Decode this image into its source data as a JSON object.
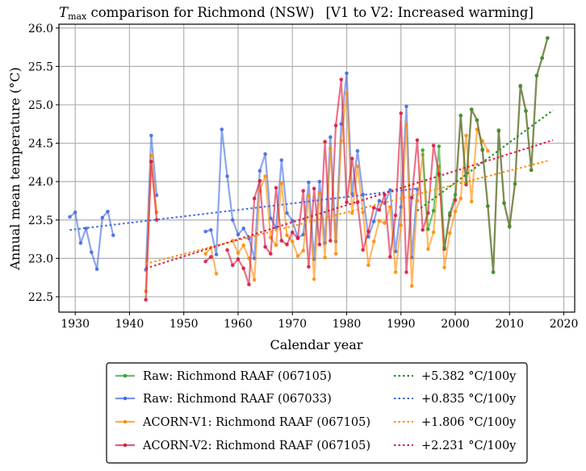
{
  "chart_data": {
    "type": "line",
    "title": {
      "prefix_italic": "T",
      "prefix_subscript": "max",
      "main": " comparison for Richmond (NSW)",
      "bracket": "[V1 to V2: Increased warming]"
    },
    "xlabel": "Calendar year",
    "ylabel": "Annual mean temperature (°C)",
    "xlim": [
      1927,
      2022
    ],
    "ylim": [
      22.3,
      26.05
    ],
    "xticks": [
      1930,
      1940,
      1950,
      1960,
      1970,
      1980,
      1990,
      2000,
      2010,
      2020
    ],
    "yticks": [
      22.5,
      23.0,
      23.5,
      24.0,
      24.5,
      25.0,
      25.5,
      26.0
    ],
    "ytick_labels": [
      "22.5",
      "23.0",
      "23.5",
      "24.0",
      "24.5",
      "25.0",
      "25.5",
      "26.0"
    ],
    "grid": true,
    "legend_position": "below-center",
    "series": [
      {
        "name": "Raw: Richmond RAAF (067033)",
        "color": "#4169e1",
        "points": [
          [
            1929,
            23.54
          ],
          [
            1930,
            23.6
          ],
          [
            1931,
            23.2
          ],
          [
            1932,
            23.39
          ],
          [
            1933,
            23.08
          ],
          [
            1934,
            22.86
          ],
          [
            1935,
            23.53
          ],
          [
            1936,
            23.61
          ],
          [
            1937,
            23.3
          ],
          null,
          [
            1943,
            22.85
          ],
          [
            1944,
            24.6
          ],
          [
            1945,
            23.82
          ],
          null,
          [
            1954,
            23.35
          ],
          [
            1955,
            23.37
          ],
          [
            1956,
            23.05
          ],
          [
            1957,
            24.68
          ],
          [
            1958,
            24.07
          ],
          [
            1959,
            23.5
          ],
          [
            1960,
            23.31
          ],
          [
            1961,
            23.39
          ],
          [
            1962,
            23.26
          ],
          [
            1963,
            23.0
          ],
          [
            1964,
            24.14
          ],
          [
            1965,
            24.36
          ],
          [
            1966,
            23.52
          ],
          [
            1967,
            23.4
          ],
          [
            1968,
            24.28
          ],
          [
            1969,
            23.59
          ],
          [
            1970,
            23.49
          ],
          [
            1971,
            23.27
          ],
          [
            1972,
            23.31
          ],
          [
            1973,
            23.99
          ],
          [
            1974,
            22.99
          ],
          [
            1975,
            24.0
          ],
          [
            1976,
            23.2
          ],
          [
            1977,
            24.58
          ],
          [
            1978,
            23.22
          ],
          [
            1979,
            24.75
          ],
          [
            1980,
            25.41
          ],
          [
            1981,
            23.84
          ],
          [
            1982,
            24.4
          ],
          [
            1983,
            23.83
          ],
          [
            1984,
            23.28
          ],
          [
            1985,
            23.48
          ],
          [
            1986,
            23.75
          ],
          [
            1987,
            23.72
          ],
          [
            1988,
            23.89
          ],
          [
            1989,
            23.09
          ],
          [
            1990,
            23.67
          ],
          [
            1991,
            24.98
          ],
          [
            1992,
            23.01
          ],
          [
            1993,
            23.9
          ]
        ]
      },
      {
        "name": "ACORN-V1: Richmond RAAF (067105)",
        "color": "#ff8c00",
        "points": [
          [
            1943,
            22.57
          ],
          [
            1944,
            24.34
          ],
          [
            1945,
            23.6
          ],
          null,
          [
            1954,
            23.06
          ],
          [
            1955,
            23.14
          ],
          [
            1956,
            22.8
          ],
          null,
          [
            1959,
            23.23
          ],
          [
            1960,
            23.07
          ],
          [
            1961,
            23.17
          ],
          [
            1962,
            23.0
          ],
          [
            1963,
            22.72
          ],
          [
            1964,
            23.88
          ],
          [
            1965,
            24.07
          ],
          [
            1966,
            23.27
          ],
          [
            1967,
            23.17
          ],
          [
            1968,
            23.98
          ],
          [
            1969,
            23.3
          ],
          [
            1970,
            23.22
          ],
          [
            1971,
            23.03
          ],
          [
            1972,
            23.1
          ],
          [
            1973,
            23.82
          ],
          [
            1974,
            22.73
          ],
          [
            1975,
            23.85
          ],
          [
            1976,
            23.01
          ],
          [
            1977,
            24.43
          ],
          [
            1978,
            23.06
          ],
          [
            1979,
            24.53
          ],
          [
            1980,
            25.15
          ],
          [
            1981,
            23.59
          ],
          [
            1982,
            24.2
          ],
          [
            1983,
            23.6
          ],
          [
            1984,
            22.91
          ],
          [
            1985,
            23.22
          ],
          [
            1986,
            23.49
          ],
          [
            1987,
            23.46
          ],
          [
            1988,
            23.67
          ],
          [
            1989,
            22.82
          ],
          [
            1990,
            23.43
          ],
          [
            1991,
            24.74
          ],
          [
            1992,
            22.64
          ],
          [
            1993,
            23.75
          ],
          [
            1994,
            24.35
          ],
          [
            1995,
            23.12
          ],
          [
            1996,
            23.34
          ],
          [
            1997,
            24.2
          ],
          [
            1998,
            22.88
          ],
          [
            1999,
            23.33
          ],
          [
            2000,
            23.61
          ],
          [
            2001,
            23.78
          ],
          [
            2002,
            24.6
          ],
          [
            2003,
            23.74
          ],
          [
            2004,
            24.68
          ],
          [
            2005,
            24.53
          ],
          [
            2006,
            24.4
          ]
        ]
      },
      {
        "name": "ACORN-V2: Richmond RAAF (067105)",
        "color": "#dc143c",
        "points": [
          [
            1943,
            22.46
          ],
          [
            1944,
            24.26
          ],
          [
            1945,
            23.5
          ],
          null,
          [
            1954,
            22.96
          ],
          [
            1955,
            23.02
          ],
          null,
          [
            1958,
            23.11
          ],
          [
            1959,
            22.91
          ],
          [
            1960,
            22.99
          ],
          [
            1961,
            22.87
          ],
          [
            1962,
            22.66
          ],
          [
            1963,
            23.78
          ],
          [
            1964,
            24.01
          ],
          [
            1965,
            23.15
          ],
          [
            1966,
            23.06
          ],
          [
            1967,
            23.92
          ],
          [
            1968,
            23.23
          ],
          [
            1969,
            23.18
          ],
          [
            1970,
            23.34
          ],
          [
            1971,
            23.26
          ],
          [
            1972,
            23.88
          ],
          [
            1973,
            22.89
          ],
          [
            1974,
            23.91
          ],
          [
            1975,
            23.18
          ],
          [
            1976,
            24.52
          ],
          [
            1977,
            23.23
          ],
          [
            1978,
            24.73
          ],
          [
            1979,
            25.33
          ],
          [
            1980,
            23.73
          ],
          [
            1981,
            24.3
          ],
          [
            1982,
            23.73
          ],
          [
            1983,
            23.11
          ],
          [
            1984,
            23.35
          ],
          [
            1985,
            23.66
          ],
          [
            1986,
            23.63
          ],
          [
            1987,
            23.83
          ],
          [
            1988,
            23.02
          ],
          [
            1989,
            23.56
          ],
          [
            1990,
            24.89
          ],
          [
            1991,
            22.82
          ],
          [
            1992,
            23.79
          ],
          [
            1993,
            24.54
          ],
          [
            1994,
            23.37
          ],
          [
            1995,
            23.59
          ],
          [
            1996,
            24.47
          ],
          [
            1997,
            24.1
          ],
          [
            1998,
            23.12
          ],
          [
            1999,
            23.56
          ],
          [
            2000,
            23.76
          ],
          [
            2001,
            24.86
          ],
          [
            2002,
            23.96
          ],
          [
            2003,
            24.94
          ],
          [
            2004,
            24.8
          ],
          [
            2005,
            24.41
          ],
          [
            2006,
            23.68
          ],
          [
            2007,
            22.82
          ],
          [
            2008,
            24.66
          ],
          [
            2009,
            23.72
          ],
          [
            2010,
            23.42
          ],
          [
            2011,
            23.97
          ],
          [
            2012,
            25.24
          ],
          [
            2013,
            24.92
          ],
          [
            2014,
            24.15
          ],
          [
            2015,
            25.38
          ],
          [
            2016,
            25.61
          ],
          [
            2017,
            25.87
          ]
        ]
      },
      {
        "name": "Raw: Richmond RAAF (067105)",
        "color": "#2ca02c",
        "points": [
          [
            1994,
            24.41
          ],
          [
            1995,
            23.38
          ],
          [
            1996,
            23.62
          ],
          [
            1997,
            24.46
          ],
          [
            1998,
            23.14
          ],
          [
            1999,
            23.59
          ],
          [
            2000,
            23.83
          ],
          [
            2001,
            24.86
          ],
          [
            2002,
            23.99
          ],
          [
            2003,
            24.94
          ],
          [
            2004,
            24.8
          ],
          [
            2005,
            24.42
          ],
          [
            2006,
            23.68
          ],
          [
            2007,
            22.82
          ],
          [
            2008,
            24.67
          ],
          [
            2009,
            23.72
          ],
          [
            2010,
            23.41
          ],
          [
            2011,
            23.97
          ],
          [
            2012,
            25.25
          ],
          [
            2013,
            24.92
          ],
          [
            2014,
            24.15
          ],
          [
            2015,
            25.38
          ],
          [
            2016,
            25.61
          ],
          [
            2017,
            25.87
          ]
        ]
      }
    ],
    "trendlines": [
      {
        "label": "+5.382 °C/100y",
        "color": "#228b22",
        "x": [
          1993,
          2018
        ],
        "y": [
          23.62,
          24.93
        ]
      },
      {
        "label": "+0.835 °C/100y",
        "color": "#4169e1",
        "x": [
          1929,
          1993
        ],
        "y": [
          23.37,
          23.91
        ]
      },
      {
        "label": "+1.806 °C/100y",
        "color": "#ff8c00",
        "x": [
          1943,
          2017
        ],
        "y": [
          22.93,
          24.27
        ]
      },
      {
        "label": "+2.231 °C/100y",
        "color": "#dc143c",
        "x": [
          1943,
          2018
        ],
        "y": [
          22.87,
          24.54
        ]
      }
    ],
    "legend": {
      "left": [
        {
          "label": "Raw: Richmond RAAF (067105)",
          "color": "#2ca02c"
        },
        {
          "label": "Raw: Richmond RAAF (067033)",
          "color": "#4169e1"
        },
        {
          "label": "ACORN-V1: Richmond RAAF (067105)",
          "color": "#ff8c00"
        },
        {
          "label": "ACORN-V2: Richmond RAAF (067105)",
          "color": "#dc143c"
        }
      ],
      "right": [
        {
          "label": "+5.382 °C/100y",
          "color": "#228b22"
        },
        {
          "label": "+0.835 °C/100y",
          "color": "#4169e1"
        },
        {
          "label": "+1.806 °C/100y",
          "color": "#ff8c00"
        },
        {
          "label": "+2.231 °C/100y",
          "color": "#dc143c"
        }
      ]
    }
  }
}
